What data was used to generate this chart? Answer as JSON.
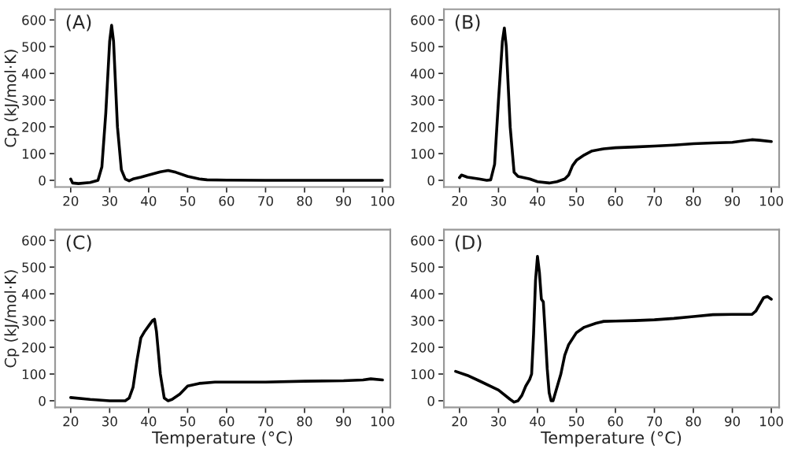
{
  "chart_data": [
    {
      "type": "line",
      "title": "(A)",
      "ylabel": "Cp (kJ/mol·K)",
      "xlim": [
        16,
        102
      ],
      "ylim": [
        -25,
        640
      ],
      "xticks": [
        20,
        30,
        40,
        50,
        60,
        70,
        80,
        90,
        100
      ],
      "yticks": [
        0,
        100,
        200,
        300,
        400,
        500,
        600
      ],
      "grid": false,
      "series": [
        {
          "color": "#000000",
          "x": [
            20,
            20.5,
            22,
            25,
            27,
            28,
            29,
            30,
            30.5,
            31,
            32,
            33,
            34,
            35,
            36,
            38,
            40,
            43,
            45,
            47,
            50,
            53,
            55,
            60,
            70,
            80,
            90,
            100
          ],
          "values": [
            5,
            -10,
            -12,
            -8,
            0,
            50,
            250,
            520,
            580,
            520,
            200,
            40,
            5,
            -2,
            5,
            12,
            20,
            32,
            37,
            30,
            15,
            5,
            2,
            1,
            0,
            0,
            0,
            0
          ]
        }
      ]
    },
    {
      "type": "line",
      "title": "(B)",
      "xlim": [
        16,
        102
      ],
      "ylim": [
        -25,
        640
      ],
      "xticks": [
        20,
        30,
        40,
        50,
        60,
        70,
        80,
        90,
        100
      ],
      "yticks": [
        0,
        100,
        200,
        300,
        400,
        500,
        600
      ],
      "grid": false,
      "series": [
        {
          "color": "#000000",
          "x": [
            20,
            20.5,
            22,
            25,
            27,
            28,
            29,
            30,
            31,
            31.5,
            32,
            33,
            34,
            35,
            38,
            40,
            43,
            45,
            47,
            48,
            49,
            50,
            52,
            54,
            57,
            60,
            65,
            70,
            75,
            80,
            85,
            90,
            93,
            95,
            97,
            100
          ],
          "values": [
            10,
            20,
            12,
            5,
            0,
            2,
            60,
            300,
            520,
            570,
            500,
            200,
            30,
            15,
            5,
            -5,
            -10,
            -5,
            5,
            20,
            55,
            75,
            95,
            110,
            118,
            122,
            125,
            128,
            132,
            137,
            140,
            142,
            148,
            152,
            150,
            145
          ]
        }
      ]
    },
    {
      "type": "line",
      "title": "(C)",
      "xlabel": "Temperature (°C)",
      "ylabel": "Cp (kJ/mol·K)",
      "xlim": [
        16,
        102
      ],
      "ylim": [
        -25,
        640
      ],
      "xticks": [
        20,
        30,
        40,
        50,
        60,
        70,
        80,
        90,
        100
      ],
      "yticks": [
        0,
        100,
        200,
        300,
        400,
        500,
        600
      ],
      "grid": false,
      "series": [
        {
          "color": "#000000",
          "x": [
            20,
            25,
            30,
            34,
            35,
            36,
            37,
            38,
            39,
            40,
            41,
            41.5,
            42,
            43,
            44,
            45,
            46,
            48,
            50,
            53,
            57,
            60,
            70,
            80,
            90,
            95,
            97,
            100
          ],
          "values": [
            12,
            5,
            0,
            0,
            10,
            50,
            150,
            235,
            260,
            280,
            300,
            305,
            260,
            100,
            10,
            0,
            5,
            25,
            55,
            65,
            70,
            70,
            70,
            73,
            75,
            78,
            82,
            78
          ]
        }
      ]
    },
    {
      "type": "line",
      "title": "(D)",
      "xlabel": "Temperature (°C)",
      "xlim": [
        16,
        102
      ],
      "ylim": [
        -25,
        640
      ],
      "xticks": [
        20,
        30,
        40,
        50,
        60,
        70,
        80,
        90,
        100
      ],
      "yticks": [
        0,
        100,
        200,
        300,
        400,
        500,
        600
      ],
      "grid": false,
      "series": [
        {
          "color": "#000000",
          "x": [
            19,
            22,
            25,
            30,
            33,
            34,
            35,
            36,
            37,
            38,
            38.5,
            39,
            39.5,
            40,
            40.5,
            41,
            41.5,
            42,
            42.5,
            43,
            43.5,
            44,
            45,
            46,
            47,
            48,
            50,
            52,
            55,
            57,
            60,
            65,
            70,
            75,
            80,
            85,
            90,
            95,
            96,
            97,
            98,
            99,
            100
          ],
          "values": [
            110,
            95,
            75,
            40,
            5,
            -5,
            0,
            20,
            55,
            80,
            100,
            250,
            450,
            540,
            480,
            380,
            370,
            250,
            120,
            30,
            0,
            0,
            50,
            100,
            170,
            210,
            255,
            275,
            290,
            297,
            298,
            300,
            303,
            308,
            315,
            322,
            323,
            323,
            335,
            360,
            385,
            390,
            380
          ]
        }
      ]
    }
  ]
}
